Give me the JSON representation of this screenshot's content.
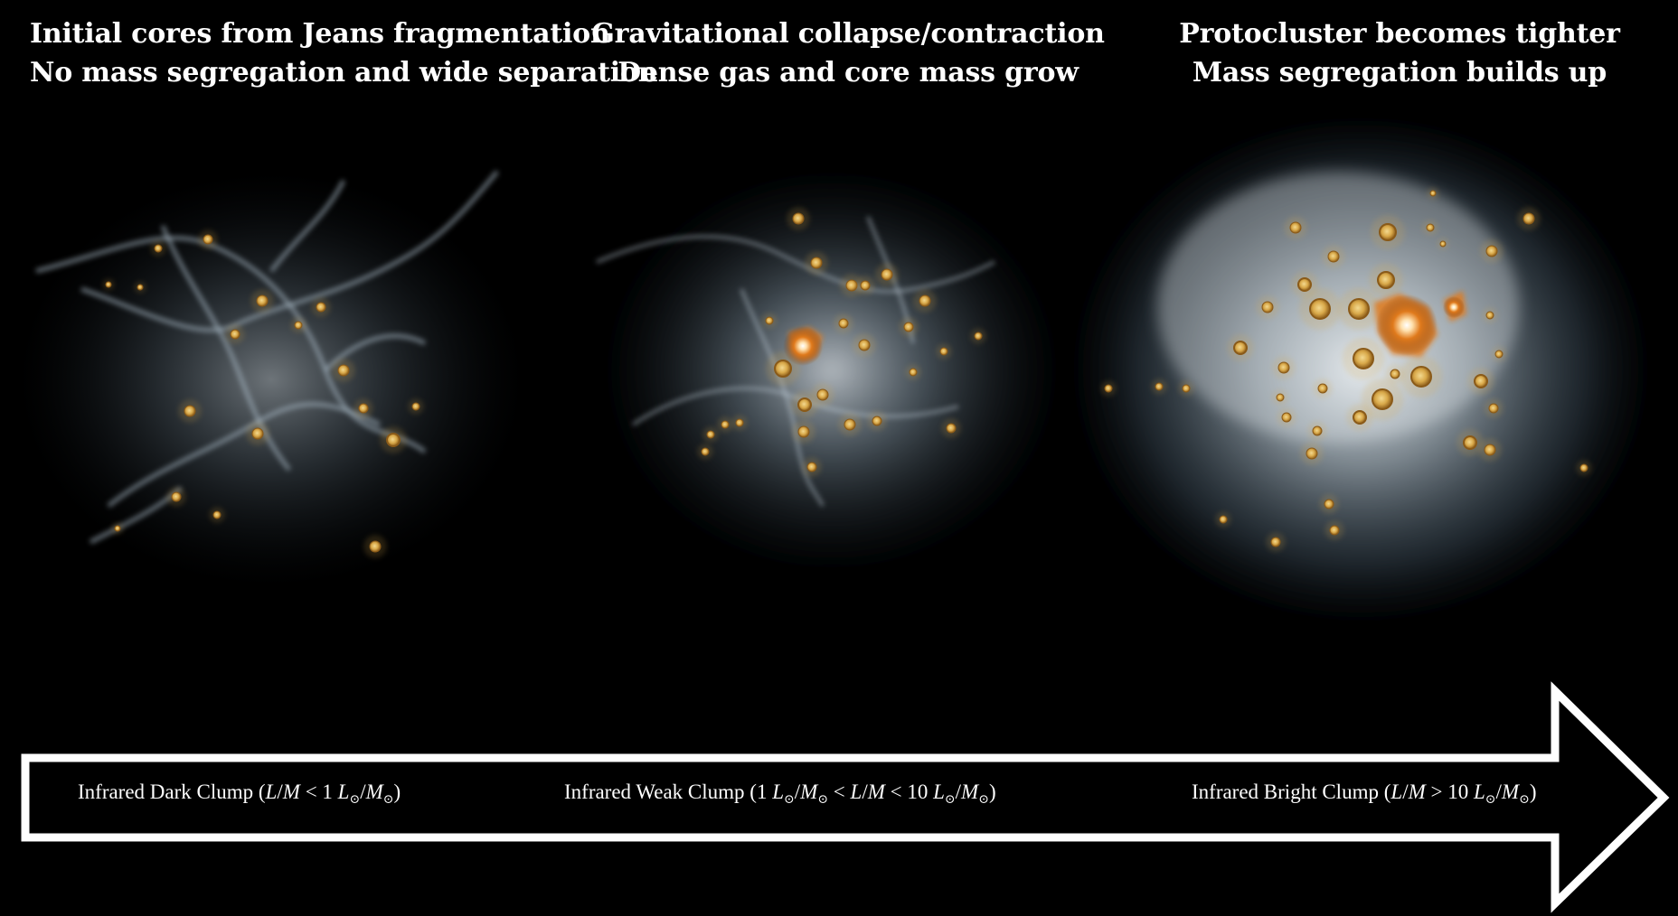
{
  "panels": [
    {
      "title_line1": "Initial cores from Jeans fragmentation",
      "title_line2": "No mass segregation and wide separation"
    },
    {
      "title_line1": "Gravitational collapse/contraction",
      "title_line2": "Dense gas and core mass grow"
    },
    {
      "title_line1": "Protocluster becomes tighter",
      "title_line2": "Mass segregation builds up"
    }
  ],
  "arrow": {
    "labels": [
      {
        "name": "Infrared Dark Clump",
        "open": " (",
        "L": "L",
        "slash": "/",
        "M": "M",
        "rel": " < 1 ",
        "L2": "L",
        "sun1": "⊙",
        "slash2": "/",
        "M2": "M",
        "sun2": "⊙",
        "close": ")"
      },
      {
        "name": "Infrared Weak Clump",
        "open": " (1 ",
        "La": "L",
        "suna": "⊙",
        "slasha": "/",
        "Ma": "M",
        "sunb": "⊙",
        "rel1": " < ",
        "L": "L",
        "slash": "/",
        "M": "M",
        "rel2": " < 10 ",
        "L2": "L",
        "sun1": "⊙",
        "slash2": "/",
        "M2": "M",
        "sun2": "⊙",
        "close": ")"
      },
      {
        "name": "Infrared Bright Clump",
        "open": " (",
        "L": "L",
        "slash": "/",
        "M": "M",
        "rel": " > 10 ",
        "L2": "L",
        "sun1": "⊙",
        "slash2": "/",
        "M2": "M",
        "sun2": "⊙",
        "close": ")"
      }
    ],
    "stroke_color": "#ffffff"
  },
  "colors": {
    "background": "#000000",
    "gas": "#b9c7d2",
    "core_fill": "#d9a94a",
    "core_edge": "#8a5a18",
    "massive_core": "#e07a1c"
  }
}
